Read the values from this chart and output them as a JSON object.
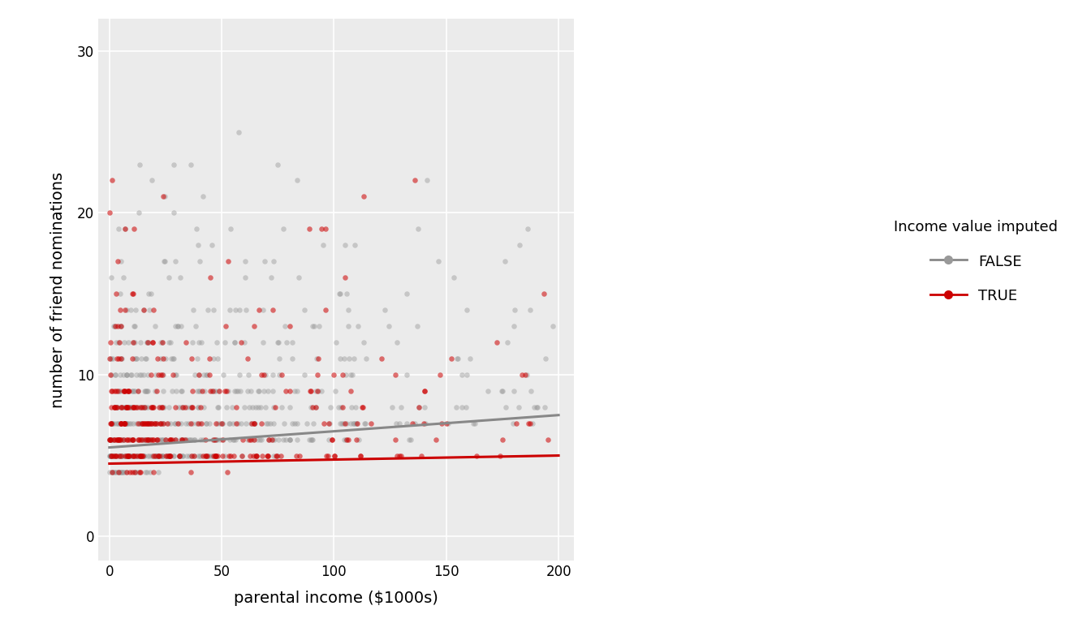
{
  "xlabel": "parental income ($1000s)",
  "ylabel": "number of friend nominations",
  "xlim": [
    -5,
    207
  ],
  "ylim": [
    -1.5,
    32
  ],
  "xticks": [
    0,
    50,
    100,
    150,
    200
  ],
  "yticks": [
    0,
    10,
    20,
    30
  ],
  "false_color": "#999999",
  "true_color": "#CC0000",
  "false_alpha": 0.45,
  "true_alpha": 0.55,
  "point_size": 22,
  "line_false_color": "#888888",
  "line_true_color": "#CC0000",
  "line_width": 2.2,
  "legend_title": "Income value imputed",
  "legend_labels": [
    "FALSE",
    "TRUE"
  ],
  "background_color": "#FFFFFF",
  "panel_background": "#EBEBEB",
  "grid_color": "#FFFFFF",
  "seed": 12345
}
